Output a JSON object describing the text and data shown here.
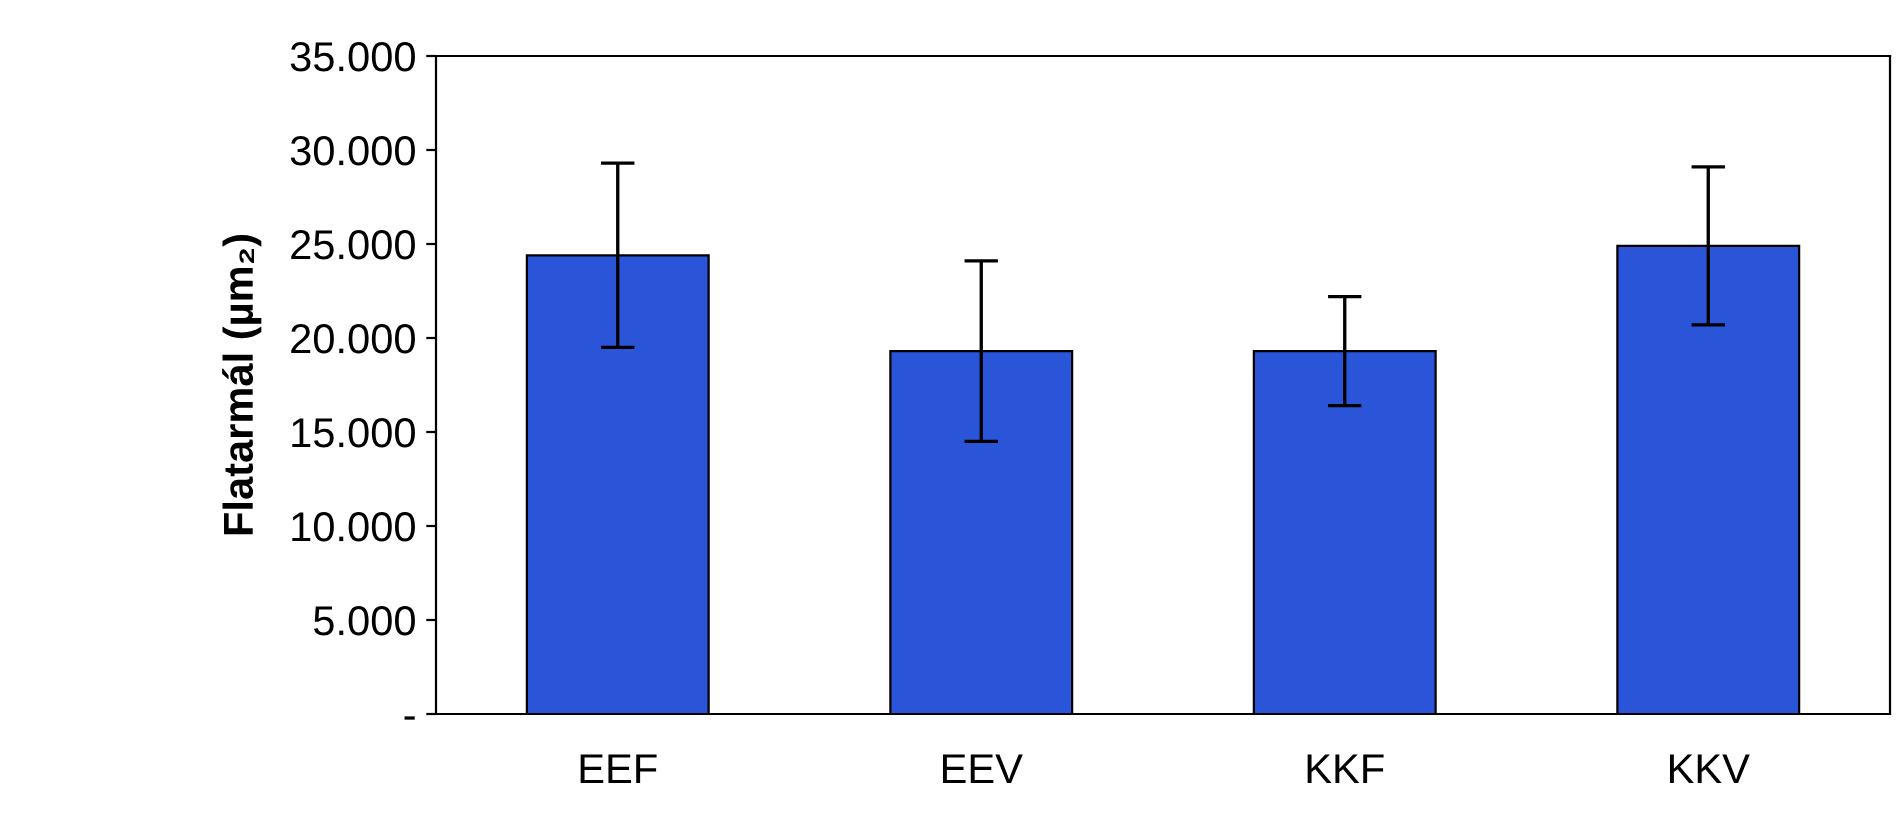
{
  "chart_data": {
    "type": "bar",
    "ylabel": "Flatarmál (µm₂)",
    "categories": [
      "EEF",
      "EEV",
      "KKF",
      "KKV"
    ],
    "values": [
      24400,
      19300,
      19300,
      24900
    ],
    "errors": [
      4900,
      4800,
      2900,
      4200
    ],
    "color": "#2b55d9",
    "ylim": [
      0,
      35000
    ],
    "yticks": [
      {
        "value": 0,
        "label": "-"
      },
      {
        "value": 5000,
        "label": "5.000"
      },
      {
        "value": 10000,
        "label": "10.000"
      },
      {
        "value": 15000,
        "label": "15.000"
      },
      {
        "value": 20000,
        "label": "20.000"
      },
      {
        "value": 25000,
        "label": "25.000"
      },
      {
        "value": 30000,
        "label": "30.000"
      },
      {
        "value": 35000,
        "label": "35.000"
      }
    ],
    "grid": false
  }
}
